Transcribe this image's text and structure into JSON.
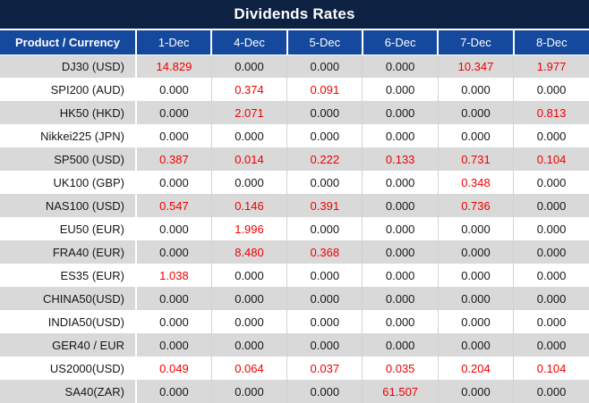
{
  "title": "Dividends Rates",
  "colors": {
    "title_bg": "#0d2143",
    "header_bg": "#14499d",
    "stripe_gray": "#d9d9d9",
    "value_red": "#f00000",
    "value_black": "#161616"
  },
  "table": {
    "corner_header": "Product / Currency",
    "date_headers": [
      "1-Dec",
      "4-Dec",
      "5-Dec",
      "6-Dec",
      "7-Dec",
      "8-Dec"
    ],
    "rows": [
      {
        "label": "DJ30 (USD)",
        "values": [
          "14.829",
          "0.000",
          "0.000",
          "0.000",
          "10.347",
          "1.977"
        ],
        "highlight": [
          true,
          false,
          false,
          false,
          true,
          true
        ]
      },
      {
        "label": "SPI200 (AUD)",
        "values": [
          "0.000",
          "0.374",
          "0.091",
          "0.000",
          "0.000",
          "0.000"
        ],
        "highlight": [
          false,
          true,
          true,
          false,
          false,
          false
        ]
      },
      {
        "label": "HK50 (HKD)",
        "values": [
          "0.000",
          "2.071",
          "0.000",
          "0.000",
          "0.000",
          "0.813"
        ],
        "highlight": [
          false,
          true,
          false,
          false,
          false,
          true
        ]
      },
      {
        "label": "Nikkei225 (JPN)",
        "values": [
          "0.000",
          "0.000",
          "0.000",
          "0.000",
          "0.000",
          "0.000"
        ],
        "highlight": [
          false,
          false,
          false,
          false,
          false,
          false
        ]
      },
      {
        "label": "SP500 (USD)",
        "values": [
          "0.387",
          "0.014",
          "0.222",
          "0.133",
          "0.731",
          "0.104"
        ],
        "highlight": [
          true,
          true,
          true,
          true,
          true,
          true
        ]
      },
      {
        "label": "UK100 (GBP)",
        "values": [
          "0.000",
          "0.000",
          "0.000",
          "0.000",
          "0.348",
          "0.000"
        ],
        "highlight": [
          false,
          false,
          false,
          false,
          true,
          false
        ]
      },
      {
        "label": "NAS100 (USD)",
        "values": [
          "0.547",
          "0.146",
          "0.391",
          "0.000",
          "0.736",
          "0.000"
        ],
        "highlight": [
          true,
          true,
          true,
          false,
          true,
          false
        ]
      },
      {
        "label": "EU50 (EUR)",
        "values": [
          "0.000",
          "1.996",
          "0.000",
          "0.000",
          "0.000",
          "0.000"
        ],
        "highlight": [
          false,
          true,
          false,
          false,
          false,
          false
        ]
      },
      {
        "label": "FRA40 (EUR)",
        "values": [
          "0.000",
          "8.480",
          "0.368",
          "0.000",
          "0.000",
          "0.000"
        ],
        "highlight": [
          false,
          true,
          true,
          false,
          false,
          false
        ]
      },
      {
        "label": "ES35 (EUR)",
        "values": [
          "1.038",
          "0.000",
          "0.000",
          "0.000",
          "0.000",
          "0.000"
        ],
        "highlight": [
          true,
          false,
          false,
          false,
          false,
          false
        ]
      },
      {
        "label": "CHINA50(USD)",
        "values": [
          "0.000",
          "0.000",
          "0.000",
          "0.000",
          "0.000",
          "0.000"
        ],
        "highlight": [
          false,
          false,
          false,
          false,
          false,
          false
        ]
      },
      {
        "label": "INDIA50(USD)",
        "values": [
          "0.000",
          "0.000",
          "0.000",
          "0.000",
          "0.000",
          "0.000"
        ],
        "highlight": [
          false,
          false,
          false,
          false,
          false,
          false
        ]
      },
      {
        "label": "GER40 / EUR",
        "values": [
          "0.000",
          "0.000",
          "0.000",
          "0.000",
          "0.000",
          "0.000"
        ],
        "highlight": [
          false,
          false,
          false,
          false,
          false,
          false
        ]
      },
      {
        "label": "US2000(USD)",
        "values": [
          "0.049",
          "0.064",
          "0.037",
          "0.035",
          "0.204",
          "0.104"
        ],
        "highlight": [
          true,
          true,
          true,
          true,
          true,
          true
        ]
      },
      {
        "label": "SA40(ZAR)",
        "values": [
          "0.000",
          "0.000",
          "0.000",
          "61.507",
          "0.000",
          "0.000"
        ],
        "highlight": [
          false,
          false,
          false,
          true,
          false,
          false
        ]
      }
    ]
  }
}
